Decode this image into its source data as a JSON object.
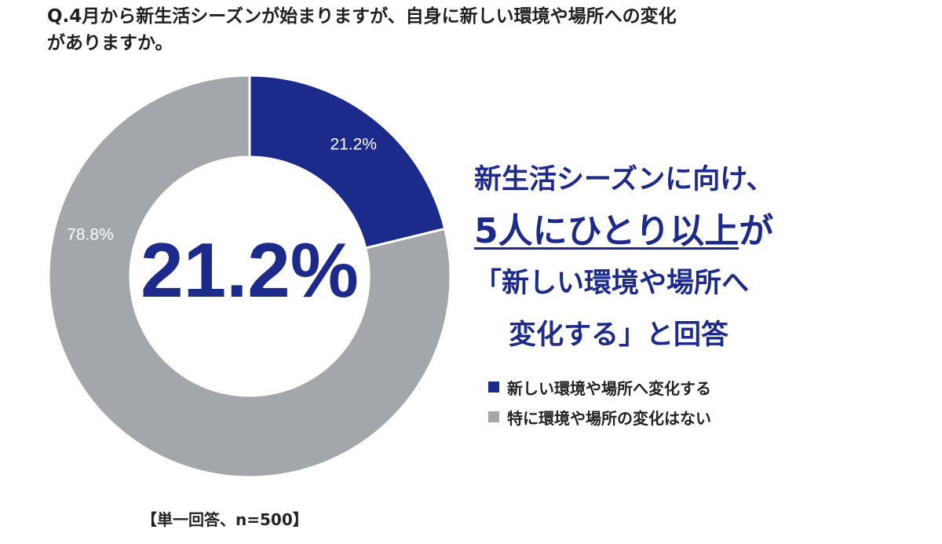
{
  "question": {
    "line1": "Q.4月から新生活シーズンが始まりますが、自身に新しい環境や場所への変化",
    "line2": "がありますか。"
  },
  "headline": {
    "line1": "新生活シーズンに向け、",
    "line2_underlined": "5人にひとり以上",
    "line2_suffix": "が",
    "line3": "「新しい環境や場所へ",
    "line4": "変化する」と回答"
  },
  "note": "【単一回答、n=500】",
  "chart_data": {
    "type": "pie",
    "style": "donut",
    "center_label": "21.2%",
    "series": [
      {
        "name": "新しい環境や場所へ変化する",
        "value": 21.2,
        "label": "21.2%",
        "color": "#1c2a8c"
      },
      {
        "name": "特に環境や場所の変化はない",
        "value": 78.8,
        "label": "78.8%",
        "color": "#a3a6ab"
      }
    ],
    "legend_placement": "right"
  }
}
